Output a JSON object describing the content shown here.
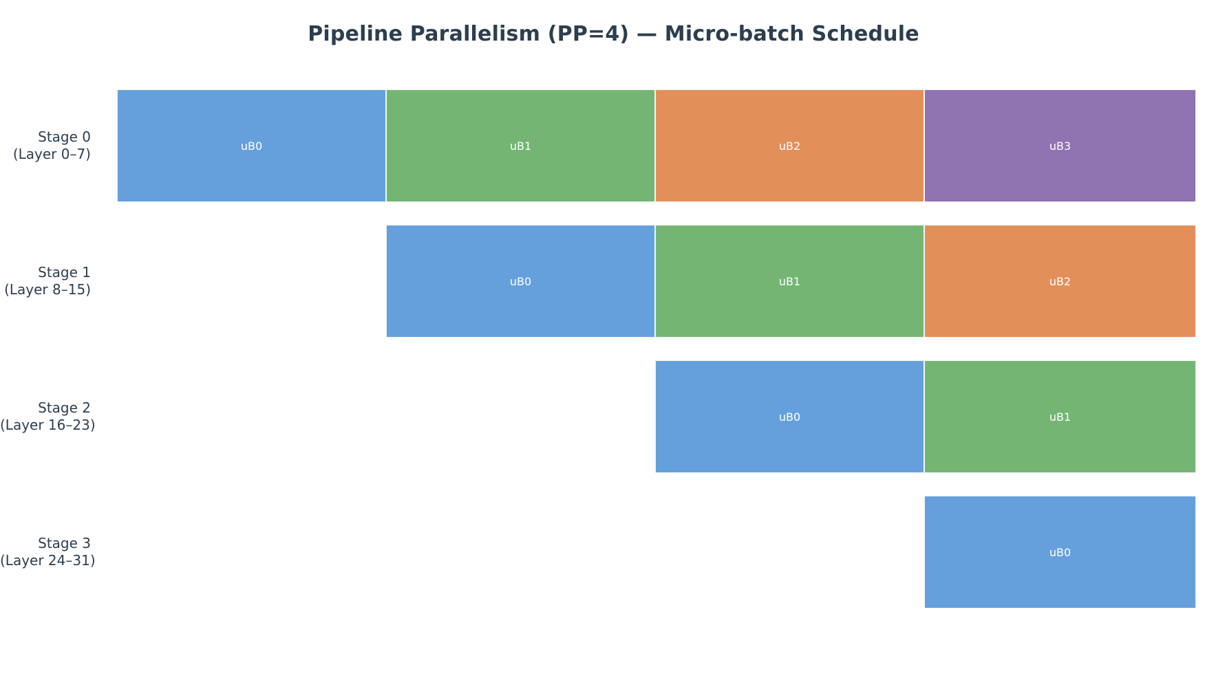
{
  "diagram": {
    "title": "Pipeline Parallelism (PP=4) — Micro-batch Schedule",
    "colors": {
      "uB0": "#65a0dc",
      "uB1": "#74b574",
      "uB2": "#e38f59",
      "uB3": "#9073b1"
    },
    "stages": [
      {
        "name": "Stage 0",
        "layers": "(Layer 0–7)",
        "cells": [
          {
            "slot": 0,
            "label": "uB0"
          },
          {
            "slot": 1,
            "label": "uB1"
          },
          {
            "slot": 2,
            "label": "uB2"
          },
          {
            "slot": 3,
            "label": "uB3"
          }
        ]
      },
      {
        "name": "Stage 1",
        "layers": "(Layer 8–15)",
        "cells": [
          {
            "slot": 1,
            "label": "uB0"
          },
          {
            "slot": 2,
            "label": "uB1"
          },
          {
            "slot": 3,
            "label": "uB2"
          }
        ]
      },
      {
        "name": "Stage 2",
        "layers": "(Layer 16–23)",
        "cells": [
          {
            "slot": 2,
            "label": "uB0"
          },
          {
            "slot": 3,
            "label": "uB1"
          }
        ]
      },
      {
        "name": "Stage 3",
        "layers": "(Layer 24–31)",
        "cells": [
          {
            "slot": 3,
            "label": "uB0"
          }
        ]
      }
    ]
  }
}
